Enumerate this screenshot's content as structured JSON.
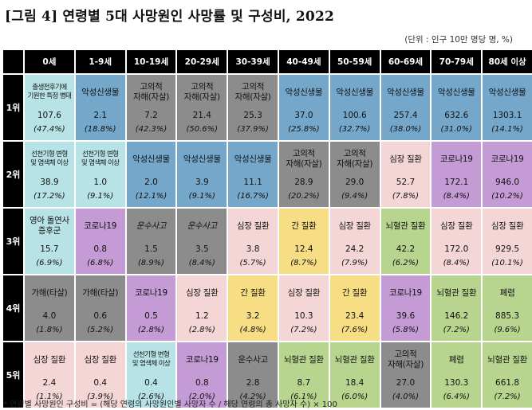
{
  "title": "[그림 4] 연령별 5대 사망원인 사망률 및 구성비, 2022",
  "unit": "(단위 : 인구 10만 명당 명, %)",
  "footnote": "* 연령별 사망원인 구성비 = (해당 연령의 사망원인별 사망자 수 / 해당 연령의 총 사망자 수) × 100",
  "colors": {
    "blue": "#74a7c9",
    "cyan": "#b8e3e6",
    "gray": "#8c8c8c",
    "pink": "#f4d6d7",
    "green": "#b7d58f",
    "purple": "#c49bd4",
    "yellow": "#f7dd84"
  },
  "age_groups": [
    "0세",
    "1-9세",
    "10-19세",
    "20-29세",
    "30-39세",
    "40-49세",
    "50-59세",
    "60-69세",
    "70-79세",
    "80세 이상"
  ],
  "ranks": [
    {
      "label": "1위",
      "cells": [
        {
          "cause": "출생전후기에\n기원한 특정 병태",
          "rate": "107.6",
          "pct": "(47.4%)",
          "color": "cyan",
          "small": true
        },
        {
          "cause": "악성신생물",
          "rate": "2.1",
          "pct": "(18.8%)",
          "color": "blue"
        },
        {
          "cause": "고의적\n자해(자살)",
          "rate": "7.2",
          "pct": "(42.3%)",
          "color": "gray"
        },
        {
          "cause": "고의적\n자해(자살)",
          "rate": "21.4",
          "pct": "(50.6%)",
          "color": "gray"
        },
        {
          "cause": "고의적\n자해(자살)",
          "rate": "25.3",
          "pct": "(37.9%)",
          "color": "gray"
        },
        {
          "cause": "악성신생물",
          "rate": "37.0",
          "pct": "(25.8%)",
          "color": "blue"
        },
        {
          "cause": "악성신생물",
          "rate": "100.6",
          "pct": "(32.7%)",
          "color": "blue"
        },
        {
          "cause": "악성신생물",
          "rate": "257.4",
          "pct": "(38.0%)",
          "color": "blue"
        },
        {
          "cause": "악성신생물",
          "rate": "632.6",
          "pct": "(31.0%)",
          "color": "blue"
        },
        {
          "cause": "악성신생물",
          "rate": "1303.1",
          "pct": "(14.1%)",
          "color": "blue"
        }
      ]
    },
    {
      "label": "2위",
      "cells": [
        {
          "cause": "선천기형 변형\n및 염색체 이상",
          "rate": "38.9",
          "pct": "(17.2%)",
          "color": "cyan",
          "small": true
        },
        {
          "cause": "선천기형 변형\n및 염색체 이상",
          "rate": "1.0",
          "pct": "(9.1%)",
          "color": "cyan",
          "small": true
        },
        {
          "cause": "악성신생물",
          "rate": "2.0",
          "pct": "(12.1%)",
          "color": "blue"
        },
        {
          "cause": "악성신생물",
          "rate": "3.9",
          "pct": "(9.1%)",
          "color": "blue"
        },
        {
          "cause": "악성신생물",
          "rate": "11.1",
          "pct": "(16.7%)",
          "color": "blue"
        },
        {
          "cause": "고의적\n자해(자살)",
          "rate": "28.9",
          "pct": "(20.2%)",
          "color": "gray"
        },
        {
          "cause": "고의적\n자해(자살)",
          "rate": "29.0",
          "pct": "(9.4%)",
          "color": "gray"
        },
        {
          "cause": "심장 질환",
          "rate": "52.7",
          "pct": "(7.8%)",
          "color": "pink"
        },
        {
          "cause": "코로나19",
          "rate": "172.1",
          "pct": "(8.4%)",
          "color": "purple"
        },
        {
          "cause": "코로나19",
          "rate": "946.0",
          "pct": "(10.2%)",
          "color": "purple"
        }
      ]
    },
    {
      "label": "3위",
      "cells": [
        {
          "cause": "영아 돌연사\n증후군",
          "rate": "15.7",
          "pct": "(6.9%)",
          "color": "cyan"
        },
        {
          "cause": "코로나19",
          "rate": "0.8",
          "pct": "(6.8%)",
          "color": "purple"
        },
        {
          "cause": "운수사고",
          "rate": "1.5",
          "pct": "(8.9%)",
          "color": "gray",
          "italic": true
        },
        {
          "cause": "운수사고",
          "rate": "3.5",
          "pct": "(8.4%)",
          "color": "gray",
          "italic": true
        },
        {
          "cause": "심장 질환",
          "rate": "3.8",
          "pct": "(5.7%)",
          "color": "pink"
        },
        {
          "cause": "간 질환",
          "rate": "12.4",
          "pct": "(8.7%)",
          "color": "yellow"
        },
        {
          "cause": "심장 질환",
          "rate": "24.2",
          "pct": "(7.9%)",
          "color": "pink"
        },
        {
          "cause": "뇌혈관 질환",
          "rate": "42.2",
          "pct": "(6.2%)",
          "color": "green"
        },
        {
          "cause": "심장 질환",
          "rate": "172.0",
          "pct": "(8.4%)",
          "color": "pink"
        },
        {
          "cause": "심장 질환",
          "rate": "929.5",
          "pct": "(10.1%)",
          "color": "pink"
        }
      ]
    },
    {
      "label": "4위",
      "cells": [
        {
          "cause": "가해(타살)",
          "rate": "4.0",
          "pct": "(1.8%)",
          "color": "gray"
        },
        {
          "cause": "가해(타살)",
          "rate": "0.6",
          "pct": "(5.2%)",
          "color": "gray"
        },
        {
          "cause": "코로나19",
          "rate": "0.5",
          "pct": "(2.8%)",
          "color": "purple"
        },
        {
          "cause": "심장 질환",
          "rate": "1.2",
          "pct": "(2.8%)",
          "color": "pink"
        },
        {
          "cause": "간 질환",
          "rate": "3.2",
          "pct": "(4.8%)",
          "color": "yellow"
        },
        {
          "cause": "심장 질환",
          "rate": "10.3",
          "pct": "(7.2%)",
          "color": "pink"
        },
        {
          "cause": "간 질환",
          "rate": "23.4",
          "pct": "(7.6%)",
          "color": "yellow"
        },
        {
          "cause": "코로나19",
          "rate": "39.6",
          "pct": "(5.8%)",
          "color": "purple"
        },
        {
          "cause": "뇌혈관 질환",
          "rate": "146.2",
          "pct": "(7.2%)",
          "color": "green"
        },
        {
          "cause": "폐렴",
          "rate": "885.3",
          "pct": "(9.6%)",
          "color": "green"
        }
      ]
    },
    {
      "label": "5위",
      "cells": [
        {
          "cause": "심장 질환",
          "rate": "2.4",
          "pct": "(1.1%)",
          "color": "pink"
        },
        {
          "cause": "심장 질환",
          "rate": "0.4",
          "pct": "(3.9%)",
          "color": "pink"
        },
        {
          "cause": "선천기형 변형\n및 염색체 이상",
          "rate": "0.4",
          "pct": "(2.6%)",
          "color": "cyan",
          "small": true
        },
        {
          "cause": "코로나19",
          "rate": "0.8",
          "pct": "(2.0%)",
          "color": "purple"
        },
        {
          "cause": "운수사고",
          "rate": "2.8",
          "pct": "(4.2%)",
          "color": "gray"
        },
        {
          "cause": "뇌혈관 질환",
          "rate": "8.7",
          "pct": "(6.1%)",
          "color": "green"
        },
        {
          "cause": "뇌혈관 질환",
          "rate": "18.4",
          "pct": "(6.0%)",
          "color": "green"
        },
        {
          "cause": "고의적\n자해(자살)",
          "rate": "27.0",
          "pct": "(4.0%)",
          "color": "gray"
        },
        {
          "cause": "폐렴",
          "rate": "130.3",
          "pct": "(6.4%)",
          "color": "green"
        },
        {
          "cause": "뇌혈관 질환",
          "rate": "661.8",
          "pct": "(7.2%)",
          "color": "green"
        }
      ]
    }
  ]
}
